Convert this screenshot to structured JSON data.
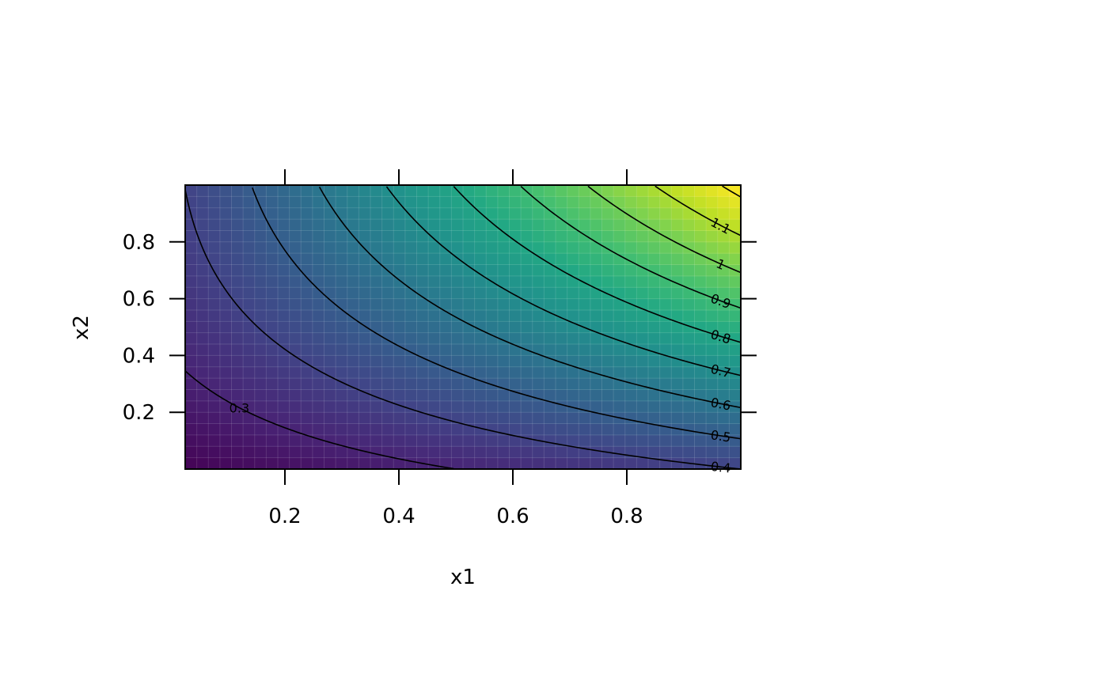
{
  "chart_data": {
    "type": "heatmap",
    "title": "",
    "xlabel": "x1",
    "ylabel": "x2",
    "xlim": [
      0.025,
      1.0
    ],
    "ylim": [
      0.0,
      1.0
    ],
    "x_ticks": [
      {
        "value": 0.2,
        "label": "0.2"
      },
      {
        "value": 0.4,
        "label": "0.4"
      },
      {
        "value": 0.6,
        "label": "0.6"
      },
      {
        "value": 0.8,
        "label": "0.8"
      }
    ],
    "y_ticks": [
      {
        "value": 0.2,
        "label": "0.2"
      },
      {
        "value": 0.4,
        "label": "0.4"
      },
      {
        "value": 0.6,
        "label": "0.6"
      },
      {
        "value": 0.8,
        "label": "0.8"
      }
    ],
    "grid": true,
    "colormap": "viridis",
    "value_range": [
      0.2,
      1.22
    ],
    "contour_levels": [
      {
        "level": 0.3,
        "label": "0.3"
      },
      {
        "level": 0.4,
        "label": "0.4"
      },
      {
        "level": 0.5,
        "label": "0.5"
      },
      {
        "level": 0.6,
        "label": "0.6"
      },
      {
        "level": 0.7,
        "label": "0.7"
      },
      {
        "level": 0.8,
        "label": "0.8"
      },
      {
        "level": 0.9,
        "label": "0.9"
      },
      {
        "level": 1.0,
        "label": "1"
      },
      {
        "level": 1.1,
        "label": "1.1"
      },
      {
        "level": 1.2,
        "label": ""
      }
    ]
  }
}
